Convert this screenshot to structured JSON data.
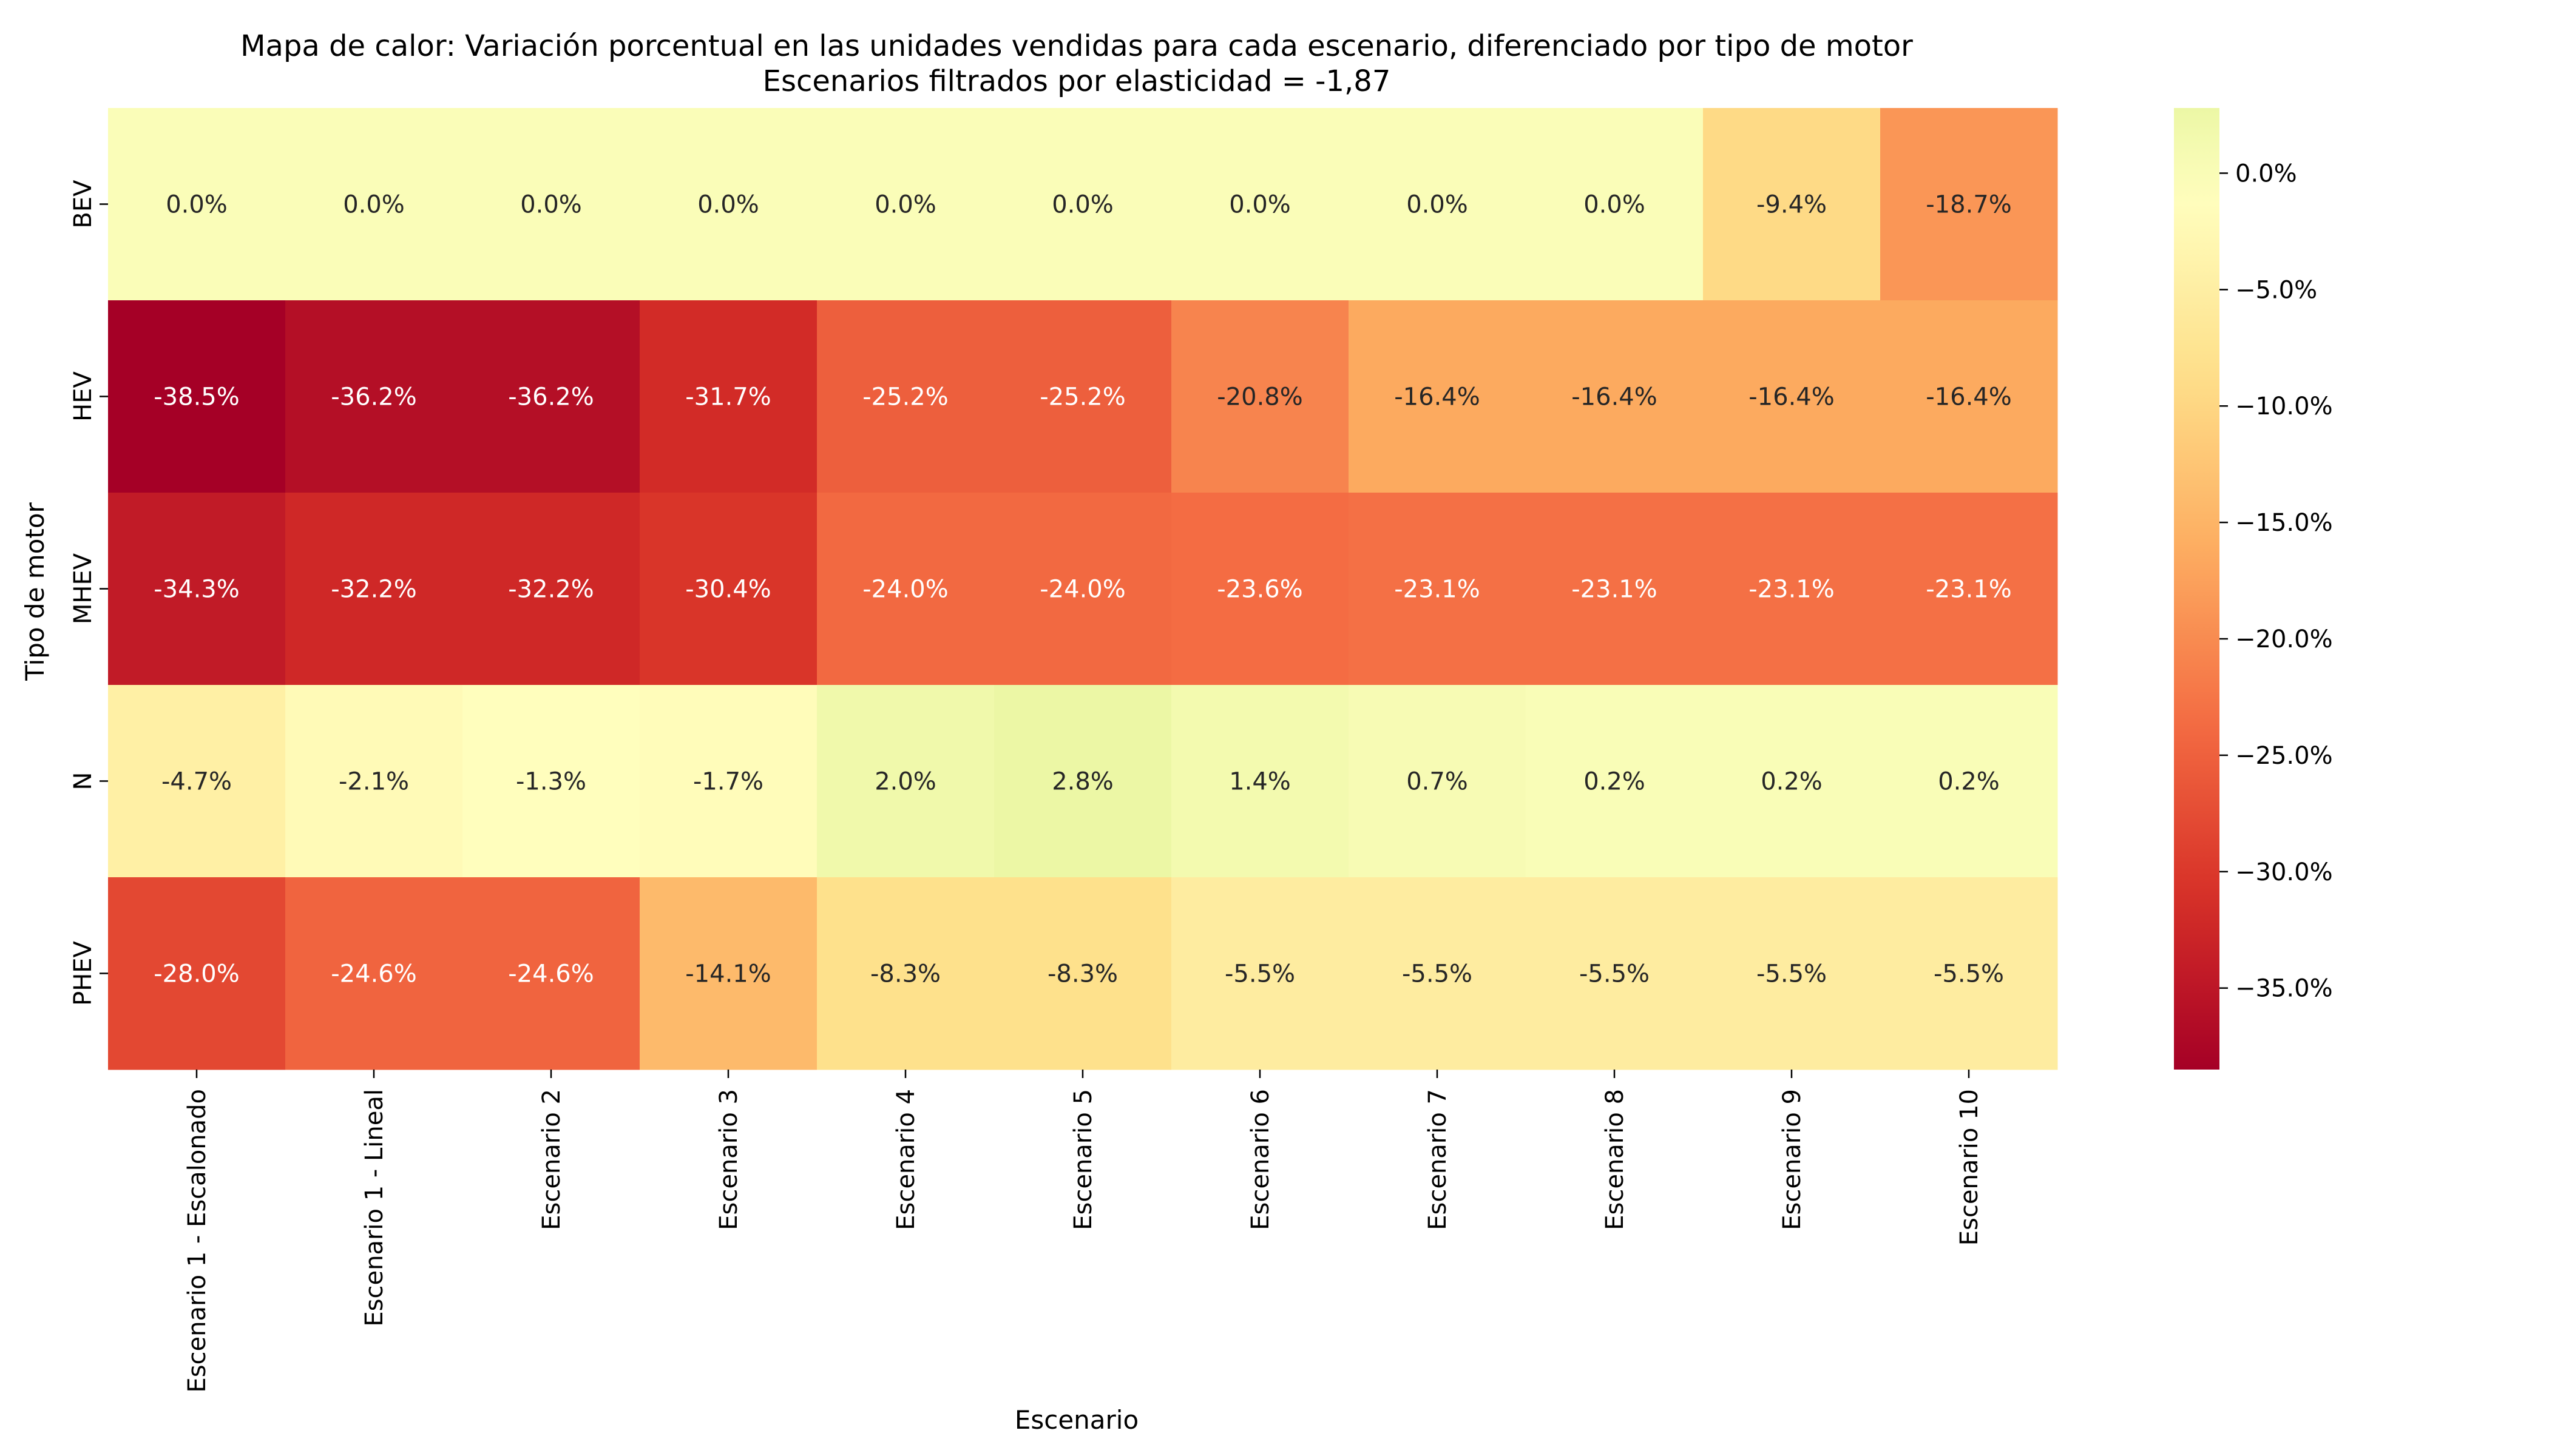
{
  "chart_data": {
    "type": "heatmap",
    "title": "Mapa de calor: Variación porcentual en las unidades vendidas para cada escenario, diferenciado por tipo de motor",
    "subtitle": "Escenarios filtrados por elasticidad = -1,87",
    "xlabel": "Escenario",
    "ylabel": "Tipo de motor",
    "x_categories": [
      "Escenario 1 - Escalonado",
      "Escenario 1 - Lineal",
      "Escenario 2",
      "Escenario 3",
      "Escenario 4",
      "Escenario 5",
      "Escenario 6",
      "Escenario 7",
      "Escenario 8",
      "Escenario 9",
      "Escenario 10"
    ],
    "y_categories": [
      "BEV",
      "HEV",
      "MHEV",
      "N",
      "PHEV"
    ],
    "values": [
      [
        0.0,
        0.0,
        0.0,
        0.0,
        0.0,
        0.0,
        0.0,
        0.0,
        0.0,
        -9.4,
        -18.7
      ],
      [
        -38.5,
        -36.2,
        -36.2,
        -31.7,
        -25.2,
        -25.2,
        -20.8,
        -16.4,
        -16.4,
        -16.4,
        -16.4
      ],
      [
        -34.3,
        -32.2,
        -32.2,
        -30.4,
        -24.0,
        -24.0,
        -23.6,
        -23.1,
        -23.1,
        -23.1,
        -23.1
      ],
      [
        -4.7,
        -2.1,
        -1.3,
        -1.7,
        2.0,
        2.8,
        1.4,
        0.7,
        0.2,
        0.2,
        0.2
      ],
      [
        -28.0,
        -24.6,
        -24.6,
        -14.1,
        -8.3,
        -8.3,
        -5.5,
        -5.5,
        -5.5,
        -5.5,
        -5.5
      ]
    ],
    "cell_labels": [
      [
        "0.0%",
        "0.0%",
        "0.0%",
        "0.0%",
        "0.0%",
        "0.0%",
        "0.0%",
        "0.0%",
        "0.0%",
        "-9.4%",
        "-18.7%"
      ],
      [
        "-38.5%",
        "-36.2%",
        "-36.2%",
        "-31.7%",
        "-25.2%",
        "-25.2%",
        "-20.8%",
        "-16.4%",
        "-16.4%",
        "-16.4%",
        "-16.4%"
      ],
      [
        "-34.3%",
        "-32.2%",
        "-32.2%",
        "-30.4%",
        "-24.0%",
        "-24.0%",
        "-23.6%",
        "-23.1%",
        "-23.1%",
        "-23.1%",
        "-23.1%"
      ],
      [
        "-4.7%",
        "-2.1%",
        "-1.3%",
        "-1.7%",
        "2.0%",
        "2.8%",
        "1.4%",
        "0.7%",
        "0.2%",
        "0.2%",
        "0.2%"
      ],
      [
        "-28.0%",
        "-24.6%",
        "-24.6%",
        "-14.1%",
        "-8.3%",
        "-8.3%",
        "-5.5%",
        "-5.5%",
        "-5.5%",
        "-5.5%",
        "-5.5%"
      ]
    ],
    "colormap": "RdYlGn-like (dark red → yellow → light green)",
    "color_range": [
      -38.5,
      2.8
    ],
    "colorbar_ticks": [
      0,
      -5,
      -10,
      -15,
      -20,
      -25,
      -30,
      -35
    ],
    "colorbar_tick_labels": [
      "0.0%",
      "−5.0%",
      "−10.0%",
      "−15.0%",
      "−20.0%",
      "−25.0%",
      "−30.0%",
      "−35.0%"
    ],
    "colorbar_position": "right",
    "grid": false
  }
}
